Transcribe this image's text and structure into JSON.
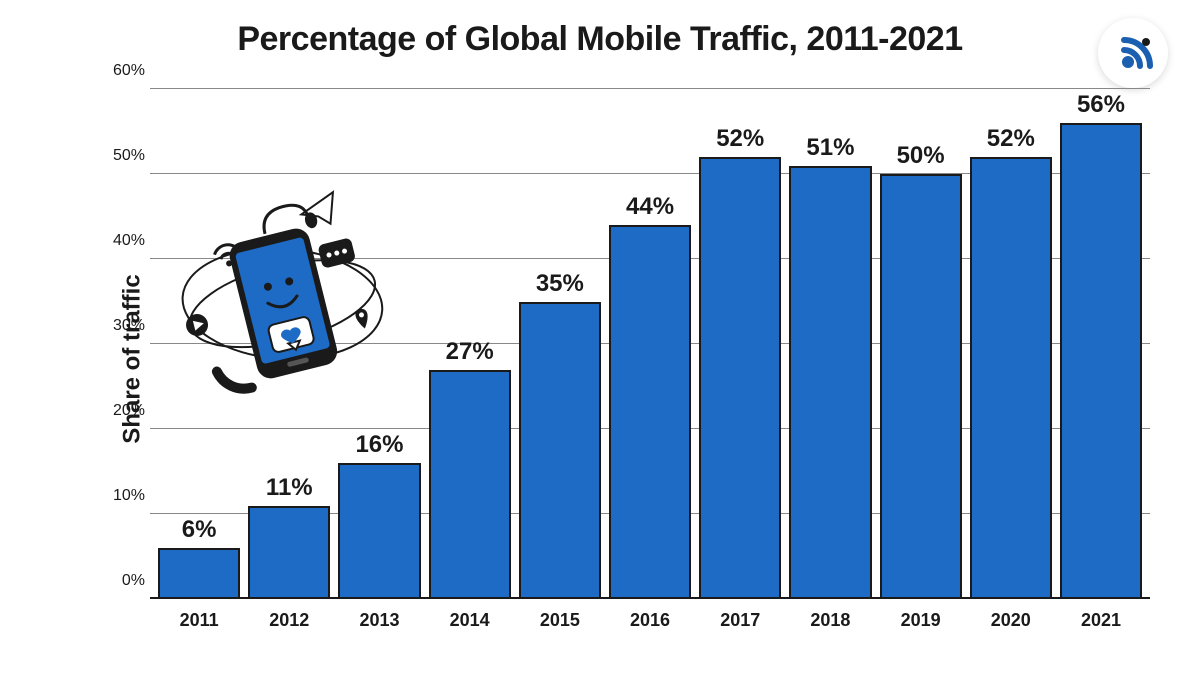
{
  "chart": {
    "type": "bar",
    "title": "Percentage of Global Mobile Traffic, 2011-2021",
    "ylabel": "Share of traffic",
    "categories": [
      "2011",
      "2012",
      "2013",
      "2014",
      "2015",
      "2016",
      "2017",
      "2018",
      "2019",
      "2020",
      "2021"
    ],
    "values": [
      6,
      11,
      16,
      27,
      35,
      44,
      52,
      51,
      50,
      52,
      56
    ],
    "value_suffix": "%",
    "ylim_max": 60,
    "ytick_step": 10,
    "yticks": [
      "0%",
      "10%",
      "20%",
      "30%",
      "40%",
      "50%",
      "60%"
    ],
    "bar_color": "#1e6bc6",
    "bar_border_color": "#1a1a1a",
    "grid_color": "#888888",
    "background_color": "#ffffff",
    "title_fontsize": 34,
    "label_fontsize": 24,
    "tick_fontsize": 16,
    "bar_label_fontsize": 24
  },
  "logo": {
    "name": "wifi-signal-icon",
    "primary_color": "#1b5fb0",
    "accent_color": "#1a1a1a"
  },
  "illustration": {
    "name": "smartphone-social-illustration",
    "phone_color": "#1e6bc6",
    "outline_color": "#1a1a1a"
  }
}
